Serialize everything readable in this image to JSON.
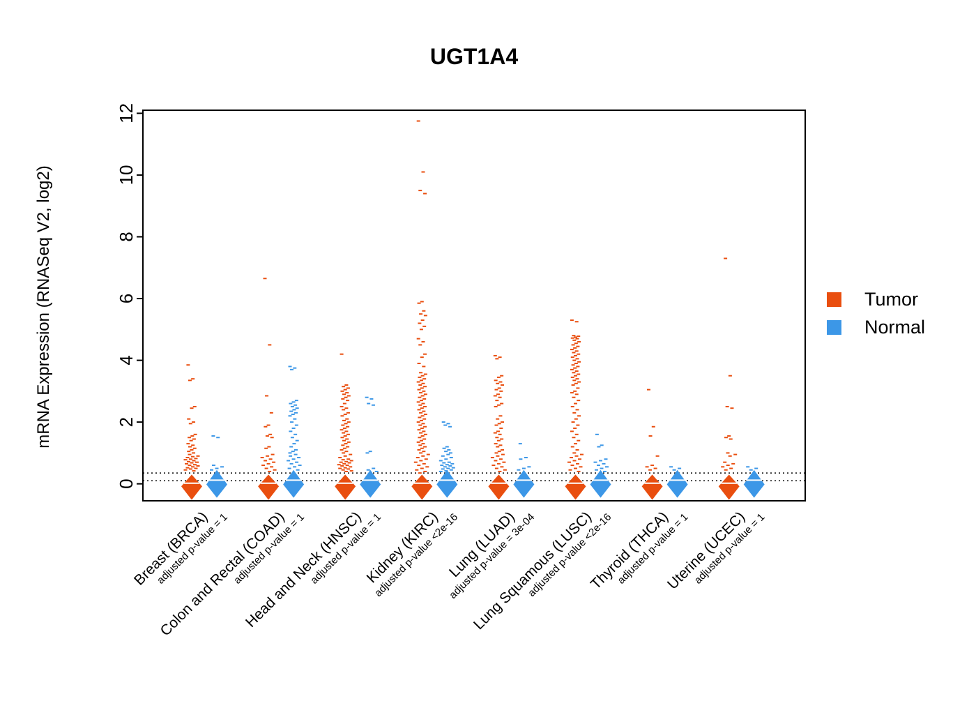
{
  "chart_data": {
    "type": "scatter",
    "title": "UGT1A4",
    "ylabel": "mRNA Expression (RNASeq V2, log2)",
    "ylim": [
      -0.55,
      12.1
    ],
    "yticks": [
      0,
      2,
      4,
      6,
      8,
      10,
      12
    ],
    "grid": false,
    "legend_position": "right",
    "threshold_lines": [
      0.35,
      0.1
    ],
    "series_colors": {
      "tumor": "#E94E0F",
      "normal": "#3C97E7"
    },
    "legend": [
      {
        "label": "Tumor",
        "key": "tumor"
      },
      {
        "label": "Normal",
        "key": "normal"
      }
    ],
    "violin": {
      "tumor": {
        "top": 0.3,
        "mid": -0.08,
        "bottom": -0.52,
        "halfwidth": 15,
        "median": 0.02
      },
      "normal": {
        "top": 0.45,
        "mid": -0.02,
        "bottom": -0.45,
        "halfwidth": 15,
        "median": 0.12
      }
    },
    "categories": [
      {
        "code": "BRCA",
        "name": "Breast (BRCA)",
        "pvalue_label": "adjusted p-value = 1",
        "tumor_outliers": [
          3.85,
          3.4,
          3.35,
          2.5,
          2.45,
          2.1,
          2.0,
          1.95,
          1.6,
          1.55,
          1.5,
          1.45,
          1.4,
          1.3,
          1.25,
          1.2,
          1.15,
          1.1,
          1.05,
          1.0,
          0.95,
          0.9,
          0.88,
          0.85,
          0.82,
          0.8,
          0.78,
          0.75,
          0.72,
          0.7,
          0.68,
          0.65,
          0.62,
          0.6,
          0.58,
          0.55,
          0.52,
          0.5,
          0.48,
          0.45,
          0.42
        ],
        "normal_outliers": [
          1.55,
          1.5,
          0.6,
          0.55,
          0.5,
          0.45
        ]
      },
      {
        "code": "COAD",
        "name": "Colon and Rectal (COAD)",
        "pvalue_label": "adjusted p-value = 1",
        "tumor_outliers": [
          6.65,
          4.5,
          2.85,
          2.3,
          1.9,
          1.85,
          1.6,
          1.55,
          1.5,
          1.2,
          1.15,
          0.95,
          0.9,
          0.85,
          0.8,
          0.75,
          0.7,
          0.65,
          0.6,
          0.55,
          0.5,
          0.45,
          0.4
        ],
        "normal_outliers": [
          3.8,
          3.75,
          3.7,
          2.7,
          2.65,
          2.6,
          2.55,
          2.5,
          2.45,
          2.4,
          2.35,
          2.3,
          2.25,
          2.2,
          2.1,
          2.0,
          1.9,
          1.8,
          1.7,
          1.6,
          1.5,
          1.4,
          1.3,
          1.2,
          1.1,
          1.05,
          1.0,
          0.95,
          0.9,
          0.85,
          0.8,
          0.75,
          0.7,
          0.65,
          0.6,
          0.55,
          0.5,
          0.45
        ]
      },
      {
        "code": "HNSC",
        "name": "Head and Neck (HNSC)",
        "pvalue_label": "adjusted p-value = 1",
        "tumor_outliers": [
          4.2,
          3.2,
          3.15,
          3.1,
          3.05,
          3.0,
          2.95,
          2.9,
          2.85,
          2.8,
          2.75,
          2.7,
          2.6,
          2.5,
          2.45,
          2.4,
          2.3,
          2.25,
          2.2,
          2.1,
          2.05,
          2.0,
          1.95,
          1.9,
          1.85,
          1.8,
          1.75,
          1.7,
          1.65,
          1.6,
          1.55,
          1.5,
          1.45,
          1.4,
          1.35,
          1.3,
          1.25,
          1.2,
          1.15,
          1.1,
          1.05,
          1.0,
          0.95,
          0.9,
          0.85,
          0.8,
          0.78,
          0.75,
          0.72,
          0.7,
          0.68,
          0.65,
          0.62,
          0.6,
          0.58,
          0.55,
          0.52,
          0.5,
          0.48,
          0.45,
          0.42,
          0.4
        ],
        "normal_outliers": [
          2.8,
          2.75,
          2.6,
          2.55,
          1.05,
          1.0,
          0.5,
          0.45,
          0.4
        ]
      },
      {
        "code": "KIRC",
        "name": "Kidney (KIRC)",
        "pvalue_label": "adjusted p-value <2e-16",
        "tumor_outliers": [
          11.75,
          10.1,
          9.5,
          9.4,
          5.9,
          5.85,
          5.6,
          5.5,
          5.45,
          5.3,
          5.2,
          5.1,
          5.0,
          4.7,
          4.6,
          4.5,
          4.2,
          4.1,
          3.9,
          3.8,
          3.6,
          3.55,
          3.5,
          3.45,
          3.4,
          3.35,
          3.3,
          3.25,
          3.2,
          3.15,
          3.1,
          3.05,
          3.0,
          2.95,
          2.9,
          2.85,
          2.8,
          2.75,
          2.7,
          2.65,
          2.6,
          2.55,
          2.5,
          2.45,
          2.4,
          2.35,
          2.3,
          2.25,
          2.2,
          2.15,
          2.1,
          2.05,
          2.0,
          1.95,
          1.9,
          1.85,
          1.8,
          1.75,
          1.7,
          1.65,
          1.6,
          1.55,
          1.5,
          1.45,
          1.4,
          1.35,
          1.3,
          1.25,
          1.2,
          1.15,
          1.1,
          1.05,
          1.0,
          0.95,
          0.9,
          0.85,
          0.8,
          0.75,
          0.7,
          0.65,
          0.6,
          0.55,
          0.5,
          0.45,
          0.4,
          0.35
        ],
        "normal_outliers": [
          2.0,
          1.95,
          1.9,
          1.85,
          1.2,
          1.15,
          1.1,
          1.05,
          1.0,
          0.95,
          0.9,
          0.85,
          0.8,
          0.75,
          0.7,
          0.68,
          0.65,
          0.62,
          0.6,
          0.58,
          0.55,
          0.52,
          0.5,
          0.48,
          0.45,
          0.42,
          0.4
        ]
      },
      {
        "code": "LUAD",
        "name": "Lung (LUAD)",
        "pvalue_label": "adjusted p-value = 3e-04",
        "tumor_outliers": [
          4.15,
          4.1,
          4.05,
          3.5,
          3.45,
          3.35,
          3.3,
          3.25,
          3.2,
          3.1,
          3.05,
          3.0,
          2.9,
          2.85,
          2.8,
          2.7,
          2.6,
          2.55,
          2.5,
          2.2,
          2.1,
          2.0,
          1.95,
          1.9,
          1.8,
          1.7,
          1.65,
          1.6,
          1.5,
          1.45,
          1.4,
          1.3,
          1.25,
          1.2,
          1.1,
          1.05,
          1.0,
          0.95,
          0.9,
          0.85,
          0.8,
          0.75,
          0.7,
          0.65,
          0.6,
          0.55,
          0.5,
          0.45,
          0.4
        ],
        "normal_outliers": [
          1.3,
          0.85,
          0.8,
          0.55,
          0.5,
          0.45
        ]
      },
      {
        "code": "LUSC",
        "name": "Lung Squamous (LUSC)",
        "pvalue_label": "adjusted p-value <2e-16",
        "tumor_outliers": [
          5.3,
          5.25,
          4.8,
          4.78,
          4.75,
          4.72,
          4.7,
          4.65,
          4.6,
          4.55,
          4.5,
          4.45,
          4.4,
          4.35,
          4.3,
          4.25,
          4.2,
          4.15,
          4.1,
          4.05,
          4.0,
          3.95,
          3.9,
          3.85,
          3.8,
          3.75,
          3.7,
          3.65,
          3.6,
          3.55,
          3.5,
          3.45,
          3.4,
          3.35,
          3.3,
          3.25,
          3.2,
          3.1,
          3.0,
          2.95,
          2.9,
          2.8,
          2.7,
          2.6,
          2.5,
          2.4,
          2.3,
          2.2,
          2.1,
          2.0,
          1.9,
          1.8,
          1.7,
          1.6,
          1.5,
          1.4,
          1.3,
          1.2,
          1.1,
          1.0,
          0.95,
          0.9,
          0.85,
          0.8,
          0.75,
          0.7,
          0.65,
          0.6,
          0.55,
          0.5,
          0.45,
          0.4
        ],
        "normal_outliers": [
          1.6,
          1.25,
          1.2,
          0.8,
          0.75,
          0.7,
          0.65,
          0.6,
          0.55,
          0.5,
          0.45,
          0.4
        ]
      },
      {
        "code": "THCA",
        "name": "Thyroid (THCA)",
        "pvalue_label": "adjusted p-value = 1",
        "tumor_outliers": [
          3.05,
          1.85,
          1.55,
          0.9,
          0.6,
          0.55,
          0.5,
          0.45
        ],
        "normal_outliers": [
          0.55,
          0.5,
          0.45
        ]
      },
      {
        "code": "UCEC",
        "name": "Uterine (UCEC)",
        "pvalue_label": "adjusted p-value = 1",
        "tumor_outliers": [
          7.3,
          3.5,
          2.5,
          2.45,
          1.55,
          1.5,
          1.45,
          1.0,
          0.95,
          0.9,
          0.7,
          0.65,
          0.6,
          0.55,
          0.5,
          0.45
        ],
        "normal_outliers": [
          0.55,
          0.5,
          0.45
        ]
      }
    ]
  }
}
